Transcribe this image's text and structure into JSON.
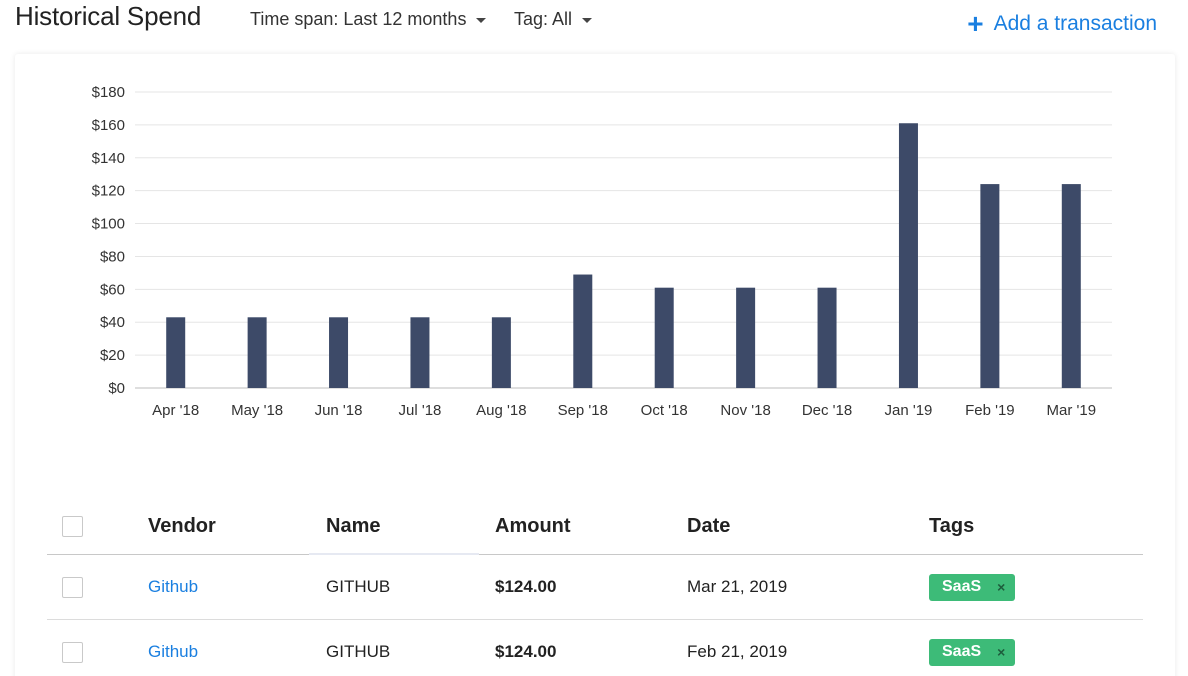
{
  "header": {
    "title": "Historical Spend",
    "time_span": "Time span: Last 12 months",
    "tag_filter": "Tag: All",
    "add_icon": "plus-icon",
    "add_label": "Add a transaction"
  },
  "colors": {
    "bar": "#3d4a68",
    "accent": "#1a7fe0",
    "tag": "#3dbb78",
    "grid": "#e5e5e5"
  },
  "chart_data": {
    "type": "bar",
    "categories": [
      "Apr '18",
      "May '18",
      "Jun '18",
      "Jul '18",
      "Aug '18",
      "Sep '18",
      "Oct '18",
      "Nov '18",
      "Dec '18",
      "Jan '19",
      "Feb '19",
      "Mar '19"
    ],
    "values": [
      43,
      43,
      43,
      43,
      43,
      69,
      61,
      61,
      61,
      161,
      124,
      124
    ],
    "ylim": [
      0,
      180
    ],
    "yticks": [
      "$0",
      "$20",
      "$40",
      "$60",
      "$80",
      "$100",
      "$120",
      "$140",
      "$160",
      "$180"
    ],
    "title": "",
    "xlabel": "",
    "ylabel": "",
    "grid": true
  },
  "table": {
    "headers": {
      "vendor": "Vendor",
      "name": "Name",
      "amount": "Amount",
      "date": "Date",
      "tags": "Tags"
    },
    "rows": [
      {
        "vendor": "Github",
        "name": "GITHUB",
        "amount": "$124.00",
        "date": "Mar 21, 2019",
        "tag": "SaaS",
        "tag_remove": "×"
      },
      {
        "vendor": "Github",
        "name": "GITHUB",
        "amount": "$124.00",
        "date": "Feb 21, 2019",
        "tag": "SaaS",
        "tag_remove": "×"
      }
    ]
  }
}
